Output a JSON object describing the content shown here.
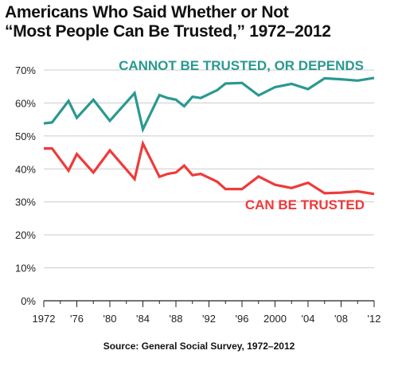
{
  "title_line1": "Americans Who Said Whether or Not",
  "title_line2": "“Most People Can Be Trusted,” 1972–2012",
  "source": "Source: General Social Survey, 1972–2012",
  "chart_data": {
    "type": "line",
    "title": "Americans Who Said Whether or Not “Most People Can Be Trusted,” 1972–2012",
    "xlim": [
      1972,
      2012
    ],
    "ylim": [
      0,
      70
    ],
    "x_ticks": [
      1972,
      1976,
      1980,
      1984,
      1988,
      1992,
      1996,
      2000,
      2004,
      2008,
      2012
    ],
    "x_tick_labels": [
      "1972",
      "'76",
      "'80",
      "'84",
      "'88",
      "'92",
      "'96",
      "2000",
      "'04",
      "'08",
      "'12"
    ],
    "y_ticks": [
      0,
      10,
      20,
      30,
      40,
      50,
      60,
      70
    ],
    "y_tick_labels": [
      "0%",
      "10%",
      "20%",
      "30%",
      "40%",
      "50%",
      "60%",
      "70%"
    ],
    "grid": "horizontal",
    "series": [
      {
        "name": "CANNOT BE TRUSTED, OR DEPENDS",
        "color": "#2a9990",
        "x": [
          1972,
          1973,
          1975,
          1976,
          1978,
          1980,
          1983,
          1984,
          1986,
          1987,
          1988,
          1989,
          1990,
          1991,
          1993,
          1994,
          1996,
          1998,
          2000,
          2002,
          2004,
          2006,
          2008,
          2010,
          2012
        ],
        "values": [
          53.8,
          54.1,
          60.6,
          55.5,
          61.0,
          54.6,
          63.0,
          52.0,
          62.4,
          61.5,
          61.0,
          59.0,
          61.9,
          61.5,
          63.9,
          65.9,
          66.1,
          62.3,
          64.8,
          65.8,
          64.2,
          67.5,
          67.2,
          66.8,
          67.6
        ]
      },
      {
        "name": "CAN BE TRUSTED",
        "color": "#ee3b3b",
        "x": [
          1972,
          1973,
          1975,
          1976,
          1978,
          1980,
          1983,
          1984,
          1986,
          1987,
          1988,
          1989,
          1990,
          1991,
          1993,
          1994,
          1996,
          1998,
          2000,
          2002,
          2004,
          2006,
          2008,
          2010,
          2012
        ],
        "values": [
          46.2,
          46.2,
          39.5,
          44.5,
          38.9,
          45.6,
          36.9,
          47.7,
          37.6,
          38.5,
          38.9,
          41.0,
          38.1,
          38.5,
          36.1,
          33.9,
          33.9,
          37.7,
          35.2,
          34.2,
          35.8,
          32.6,
          32.8,
          33.2,
          32.4
        ]
      }
    ],
    "annotations": [
      "CANNOT BE TRUSTED, OR DEPENDS",
      "CAN BE TRUSTED"
    ]
  }
}
